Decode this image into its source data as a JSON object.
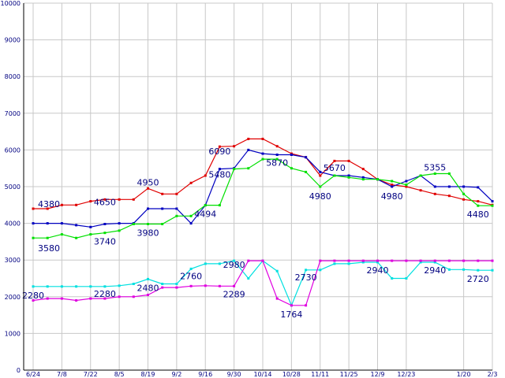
{
  "chart_data": {
    "type": "line",
    "title": "",
    "xlabel": "",
    "ylabel": "",
    "ylim": [
      0,
      10000
    ],
    "yticks": [
      0,
      1000,
      2000,
      3000,
      4000,
      5000,
      6000,
      7000,
      8000,
      9000,
      10000
    ],
    "grid": true,
    "legend": "none",
    "x_tick_labels": [
      "6/24",
      "7/8",
      "7/22",
      "8/5",
      "8/19",
      "9/2",
      "9/16",
      "9/30",
      "10/14",
      "10/28",
      "11/11",
      "11/25",
      "12/9",
      "12/23",
      "1/20",
      "2/3"
    ],
    "x_tick_positions": [
      0,
      2,
      4,
      6,
      8,
      10,
      12,
      14,
      16,
      18,
      20,
      22,
      24,
      26,
      30,
      32
    ],
    "x_count": 33,
    "series": [
      {
        "color": "#e00000",
        "values": [
          4400,
          4400,
          4500,
          4500,
          4600,
          4650,
          4650,
          4650,
          4950,
          4800,
          4800,
          5100,
          5300,
          6090,
          6100,
          6300,
          6300,
          6100,
          5900,
          5800,
          5300,
          5700,
          5700,
          5480,
          5200,
          5050,
          5000,
          4900,
          4800,
          4750,
          4650,
          4600,
          4500
        ]
      },
      {
        "color": "#0000c0",
        "values": [
          4000,
          4000,
          4000,
          3950,
          3900,
          3980,
          4000,
          4000,
          4400,
          4400,
          4400,
          4000,
          4494,
          5480,
          5500,
          6000,
          5900,
          5870,
          5870,
          5800,
          5400,
          5300,
          5300,
          5250,
          5200,
          5000,
          5150,
          5300,
          5000,
          5000,
          5000,
          4980,
          4600
        ]
      },
      {
        "color": "#00e000",
        "values": [
          3600,
          3600,
          3700,
          3600,
          3700,
          3740,
          3800,
          3980,
          3980,
          3980,
          4200,
          4200,
          4494,
          4494,
          5480,
          5500,
          5750,
          5750,
          5500,
          5400,
          5000,
          5300,
          5250,
          5200,
          5200,
          5150,
          5050,
          5300,
          5355,
          5355,
          4800,
          4480,
          4480
        ]
      },
      {
        "color": "#00e0e0",
        "values": [
          2280,
          2280,
          2280,
          2280,
          2280,
          2280,
          2300,
          2350,
          2480,
          2350,
          2350,
          2760,
          2900,
          2900,
          2980,
          2500,
          2980,
          2700,
          1764,
          2730,
          2730,
          2900,
          2900,
          2940,
          2940,
          2500,
          2500,
          2940,
          2940,
          2740,
          2740,
          2720,
          2720
        ]
      },
      {
        "color": "#e000e0",
        "values": [
          1900,
          1950,
          1950,
          1900,
          1950,
          1950,
          2000,
          2000,
          2050,
          2250,
          2250,
          2289,
          2300,
          2289,
          2289,
          2980,
          2980,
          1950,
          1764,
          1764,
          2980,
          2980,
          2980,
          2980,
          2980,
          2980,
          2980,
          2980,
          2980,
          2980,
          2980,
          2980,
          2980
        ]
      }
    ],
    "annotations": [
      {
        "text": "4380",
        "x": 0,
        "y": 4380,
        "anchor": "start",
        "dx": 6,
        "dy": -3
      },
      {
        "text": "3580",
        "x": 0,
        "y": 3580,
        "anchor": "start",
        "dx": 6,
        "dy": 16
      },
      {
        "text": "2280",
        "x": 0,
        "y": 2280,
        "anchor": "middle",
        "dx": 0,
        "dy": 15
      },
      {
        "text": "4650",
        "x": 5,
        "y": 4650,
        "anchor": "middle",
        "dx": 0,
        "dy": 7
      },
      {
        "text": "3740",
        "x": 5,
        "y": 3740,
        "anchor": "middle",
        "dx": 0,
        "dy": 15
      },
      {
        "text": "2280",
        "x": 5,
        "y": 2280,
        "anchor": "middle",
        "dx": 0,
        "dy": 13
      },
      {
        "text": "4950",
        "x": 8,
        "y": 4950,
        "anchor": "middle",
        "dx": 0,
        "dy": -4
      },
      {
        "text": "3980",
        "x": 8,
        "y": 3980,
        "anchor": "middle",
        "dx": 0,
        "dy": 15
      },
      {
        "text": "2480",
        "x": 8,
        "y": 2480,
        "anchor": "middle",
        "dx": 0,
        "dy": 15
      },
      {
        "text": "4494",
        "x": 12,
        "y": 4494,
        "anchor": "middle",
        "dx": 0,
        "dy": 15
      },
      {
        "text": "2760",
        "x": 11,
        "y": 2760,
        "anchor": "middle",
        "dx": 0,
        "dy": 13
      },
      {
        "text": "6090",
        "x": 13,
        "y": 6090,
        "anchor": "middle",
        "dx": 0,
        "dy": 10
      },
      {
        "text": "5480",
        "x": 13,
        "y": 5480,
        "anchor": "middle",
        "dx": 0,
        "dy": 11
      },
      {
        "text": "2980",
        "x": 14,
        "y": 2980,
        "anchor": "middle",
        "dx": 0,
        "dy": 9
      },
      {
        "text": "2289",
        "x": 14,
        "y": 2289,
        "anchor": "middle",
        "dx": 0,
        "dy": 14
      },
      {
        "text": "5870",
        "x": 17,
        "y": 5870,
        "anchor": "middle",
        "dx": 0,
        "dy": 14
      },
      {
        "text": "1764",
        "x": 18,
        "y": 1764,
        "anchor": "middle",
        "dx": 0,
        "dy": 15
      },
      {
        "text": "2730",
        "x": 19,
        "y": 2730,
        "anchor": "middle",
        "dx": 0,
        "dy": 13
      },
      {
        "text": "5670",
        "x": 21,
        "y": 5670,
        "anchor": "middle",
        "dx": 0,
        "dy": 11
      },
      {
        "text": "4980",
        "x": 20,
        "y": 4980,
        "anchor": "middle",
        "dx": 0,
        "dy": 15
      },
      {
        "text": "4980",
        "x": 25,
        "y": 4980,
        "anchor": "middle",
        "dx": 0,
        "dy": 15
      },
      {
        "text": "2940",
        "x": 24,
        "y": 2940,
        "anchor": "middle",
        "dx": 0,
        "dy": 14
      },
      {
        "text": "5355",
        "x": 28,
        "y": 5355,
        "anchor": "middle",
        "dx": 0,
        "dy": -4
      },
      {
        "text": "2940",
        "x": 28,
        "y": 2940,
        "anchor": "middle",
        "dx": 0,
        "dy": 14
      },
      {
        "text": "4480",
        "x": 31,
        "y": 4480,
        "anchor": "middle",
        "dx": 0,
        "dy": 15
      },
      {
        "text": "2720",
        "x": 31,
        "y": 2720,
        "anchor": "middle",
        "dx": 0,
        "dy": 15
      }
    ]
  }
}
